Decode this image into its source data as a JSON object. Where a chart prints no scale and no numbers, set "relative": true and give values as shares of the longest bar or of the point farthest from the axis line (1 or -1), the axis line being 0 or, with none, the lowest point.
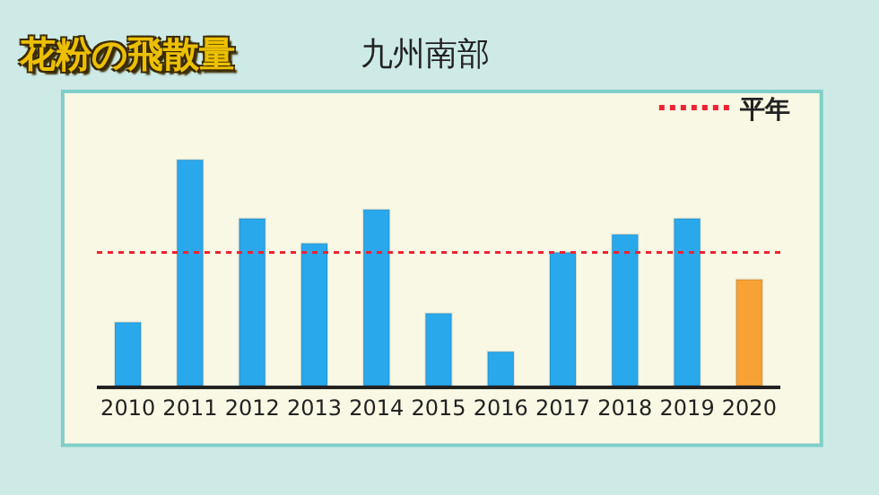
{
  "chart_data": {
    "type": "bar",
    "title": "花粉の飛散量",
    "subtitle": "九州南部",
    "relative": true,
    "categories": [
      "2010",
      "2011",
      "2012",
      "2013",
      "2014",
      "2015",
      "2016",
      "2017",
      "2018",
      "2019",
      "2020"
    ],
    "values": [
      0.28,
      1,
      0.74,
      0.63,
      0.78,
      0.32,
      0.15,
      0.59,
      0.67,
      0.74,
      0.47
    ],
    "colors": [
      "#29a8ec",
      "#29a8ec",
      "#29a8ec",
      "#29a8ec",
      "#29a8ec",
      "#29a8ec",
      "#29a8ec",
      "#29a8ec",
      "#29a8ec",
      "#29a8ec",
      "#f8a135"
    ],
    "ref_lines": [
      {
        "axis": "y",
        "value": 0.59,
        "label": "平年",
        "color": "#ee2233",
        "line_style": "dotted"
      }
    ],
    "legend": "top right"
  }
}
